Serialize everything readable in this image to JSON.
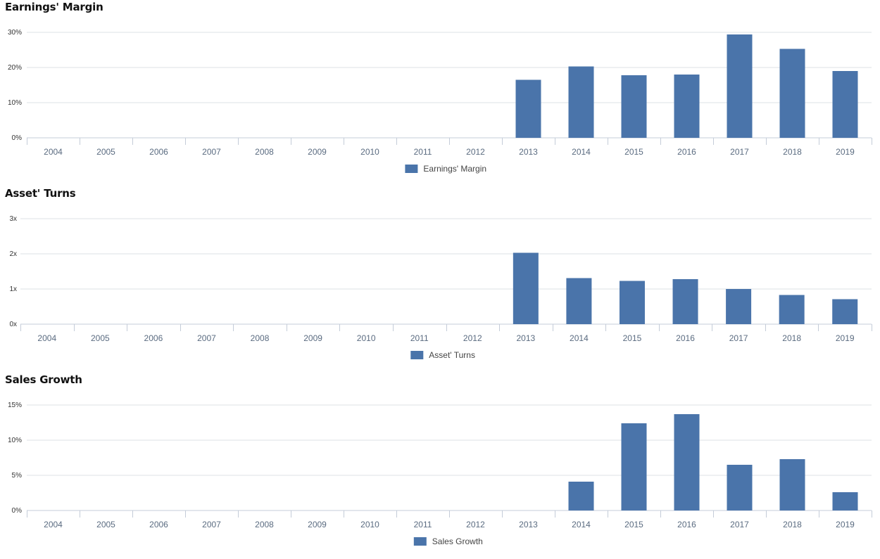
{
  "colors": {
    "bar": "#4a74aa",
    "grid": "#dde1e6",
    "axis": "#c4ccd8"
  },
  "chart_data": [
    {
      "type": "bar",
      "title": "Earnings' Margin",
      "categories": [
        "2004",
        "2005",
        "2006",
        "2007",
        "2008",
        "2009",
        "2010",
        "2011",
        "2012",
        "2013",
        "2014",
        "2015",
        "2016",
        "2017",
        "2018",
        "2019"
      ],
      "series": [
        {
          "name": "Earnings' Margin",
          "values": [
            0,
            0,
            0,
            0,
            0,
            0,
            0,
            0,
            0,
            16.5,
            20.3,
            17.8,
            18.0,
            29.4,
            25.3,
            19.0
          ]
        }
      ],
      "ylim": [
        0,
        30
      ],
      "yticks": [
        0,
        10,
        20,
        30
      ],
      "ytick_labels": [
        "0%",
        "10%",
        "20%",
        "30%"
      ],
      "legend": "bottom-center",
      "grid": true
    },
    {
      "type": "bar",
      "title": "Asset' Turns",
      "categories": [
        "2004",
        "2005",
        "2006",
        "2007",
        "2008",
        "2009",
        "2010",
        "2011",
        "2012",
        "2013",
        "2014",
        "2015",
        "2016",
        "2017",
        "2018",
        "2019"
      ],
      "series": [
        {
          "name": "Asset' Turns",
          "values": [
            0,
            0,
            0,
            0,
            0,
            0,
            0,
            0,
            0,
            2.03,
            1.31,
            1.23,
            1.28,
            1.0,
            0.83,
            0.71
          ]
        }
      ],
      "ylim": [
        0,
        3
      ],
      "yticks": [
        0,
        1,
        2,
        3
      ],
      "ytick_labels": [
        "0x",
        "1x",
        "2x",
        "3x"
      ],
      "legend": "bottom-center",
      "grid": true
    },
    {
      "type": "bar",
      "title": "Sales Growth",
      "categories": [
        "2004",
        "2005",
        "2006",
        "2007",
        "2008",
        "2009",
        "2010",
        "2011",
        "2012",
        "2013",
        "2014",
        "2015",
        "2016",
        "2017",
        "2018",
        "2019"
      ],
      "series": [
        {
          "name": "Sales Growth",
          "values": [
            0,
            0,
            0,
            0,
            0,
            0,
            0,
            0,
            0,
            0,
            4.1,
            12.4,
            13.7,
            6.5,
            7.3,
            2.6
          ]
        }
      ],
      "ylim": [
        0,
        15
      ],
      "yticks": [
        0,
        5,
        10,
        15
      ],
      "ytick_labels": [
        "0%",
        "5%",
        "10%",
        "15%"
      ],
      "legend": "bottom-center",
      "grid": true
    }
  ]
}
